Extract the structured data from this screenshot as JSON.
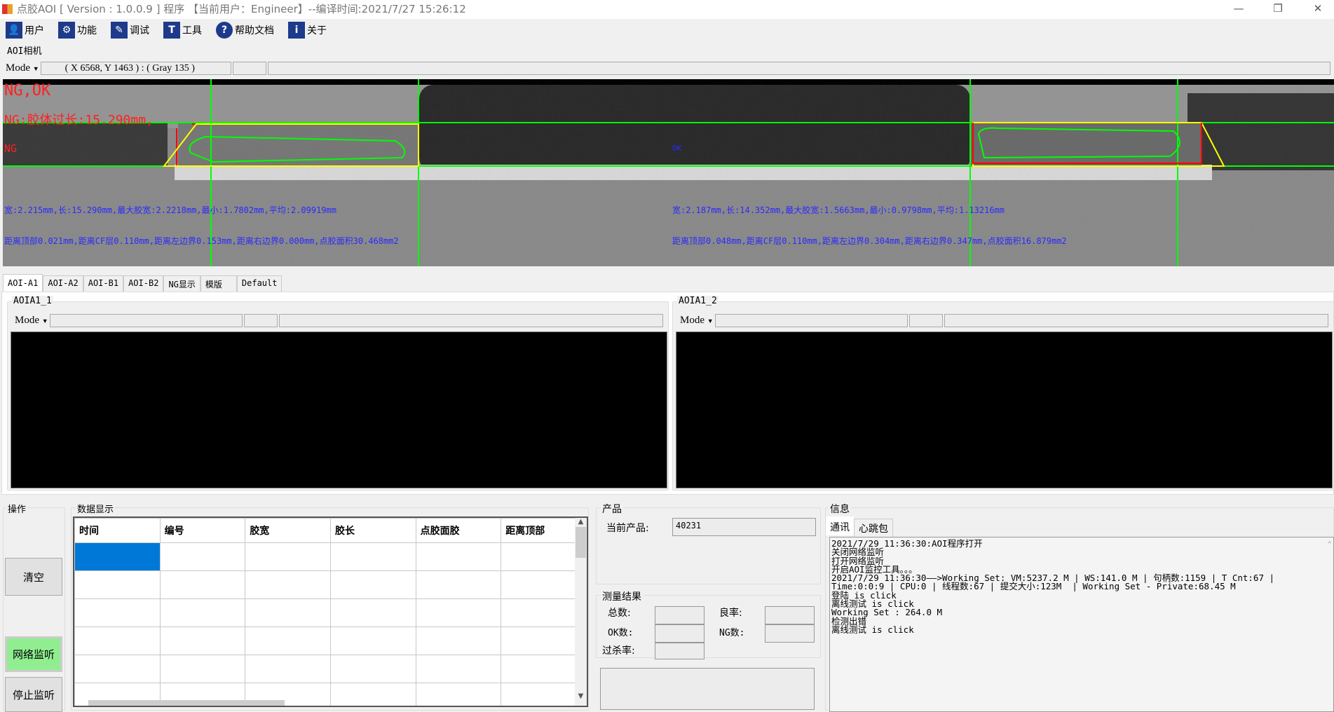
{
  "window": {
    "title": "点胶AOI [ Version : 1.0.0.9 ]  程序 【当前用户：Engineer】--编译时间:2021/7/27 15:26:12",
    "minimize": "—",
    "restore": "❐",
    "close": "✕"
  },
  "toolbar": [
    {
      "label": "用户",
      "icon": "user-icon",
      "glyph": "👤"
    },
    {
      "label": "功能",
      "icon": "gear-icon",
      "glyph": "⚙"
    },
    {
      "label": "调试",
      "icon": "debug-icon",
      "glyph": "✎"
    },
    {
      "label": "工具",
      "icon": "hammer-icon",
      "glyph": "T"
    },
    {
      "label": "帮助文档",
      "icon": "help-icon",
      "glyph": "?"
    },
    {
      "label": "关于",
      "icon": "info-icon",
      "glyph": "i"
    }
  ],
  "camera": {
    "label": "AOI相机",
    "mode": "Mode",
    "coords": "( X 6568, Y 1463 ) : ( Gray 135 )"
  },
  "overlay": {
    "result": "NG,OK",
    "ng_reason": "NG:胶体过长:15.290mm,",
    "left_status": "NG",
    "right_status": "OK",
    "left_line1": "宽:2.215mm,长:15.290mm,最大胶宽:2.2218mm,最小:1.7802mm,平均:2.09919mm",
    "left_line2": "距离顶部0.021mm,距离CF层0.110mm,距离左边界0.153mm,距离右边界0.000mm,点胶面积30.468mm2",
    "right_line1": "宽:2.187mm,长:14.352mm,最大胶宽:1.5663mm,最小:0.9798mm,平均:1.13216mm",
    "right_line2": "距离顶部0.048mm,距离CF层0.110mm,距离左边界0.304mm,距离右边界0.347mm,点胶面积16.879mm2",
    "colors": {
      "ng": "#ff2020",
      "info": "#2a2aff",
      "line": "#00ff00",
      "box": "#ffff00"
    }
  },
  "tabs": [
    "AOI-A1",
    "AOI-A2",
    "AOI-B1",
    "AOI-B2",
    "NG显示",
    "模版",
    "Default"
  ],
  "views": [
    {
      "label": "AOIA1_1",
      "mode": "Mode"
    },
    {
      "label": "AOIA1_2",
      "mode": "Mode"
    }
  ],
  "ops": {
    "label": "操作",
    "clear": "清空",
    "listen": "网络监听",
    "stop": "停止监听",
    "listen_color": "#90ee90"
  },
  "data": {
    "label": "数据显示",
    "columns": [
      "时间",
      "编号",
      "胶宽",
      "胶长",
      "点胶面胶",
      "距离顶部"
    ]
  },
  "product": {
    "label": "产品",
    "current_label": "当前产品:",
    "current_value": "40231"
  },
  "measure": {
    "label": "测量结果",
    "total": "总数:",
    "yield": "良率:",
    "ok": "OK数:",
    "ng": "NG数:",
    "overkill": "过杀率:"
  },
  "info": {
    "label": "信息",
    "tabs": [
      "通讯",
      "心跳包"
    ],
    "log": [
      "2021/7/29 11:36:30:AOI程序打开",
      "关闭网络监听",
      "打开网络监听",
      "开启AOI监控工具。。。",
      "2021/7/29 11:36:30——>Working Set: VM:5237.2 M | WS:141.0 M | 句柄数:1159 | T Cnt:67 |",
      "Time:0:0:9 | CPU:0 | 线程数:67 | 提交大小:123M  | Working Set - Private:68.45 M",
      "登陆 is click",
      "离线测试 is click",
      "Working Set : 264.0 M",
      "检测出错",
      "离线测试 is click"
    ]
  }
}
